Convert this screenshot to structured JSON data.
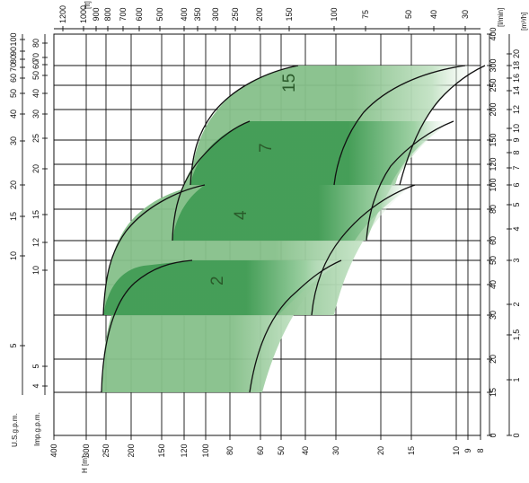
{
  "chart_data": {
    "type": "area",
    "colors": {
      "zone_light": "#86c08a",
      "zone_dark": "#3e9a52",
      "curve": "#111111",
      "grid": "#111111"
    },
    "pump_ranges": [
      {
        "label": "2",
        "name": "zone-2"
      },
      {
        "label": "4",
        "name": "zone-4"
      },
      {
        "label": "7",
        "name": "zone-7"
      },
      {
        "label": "15",
        "name": "zone-15"
      }
    ],
    "axes": {
      "head_m": {
        "unit": "H [m]",
        "ticks": [
          "400",
          "300",
          "250",
          "200",
          "150",
          "120",
          "100",
          "80",
          "60",
          "50",
          "40",
          "30",
          "20",
          "15",
          "10",
          "9",
          "8"
        ]
      },
      "head_ft": {
        "unit": "[ft]",
        "ticks": [
          "1200",
          "1000",
          "900",
          "800",
          "700",
          "600",
          "500",
          "400",
          "350",
          "300",
          "250",
          "200",
          "150",
          "100",
          "75",
          "50",
          "40",
          "30"
        ]
      },
      "flow_lmin": {
        "unit": "[l/min]",
        "ticks": [
          "400",
          "300",
          "250",
          "200",
          "150",
          "120",
          "100",
          "80",
          "60",
          "50",
          "40",
          "30",
          "20",
          "15",
          "0"
        ]
      },
      "flow_m3h": {
        "unit": "[m³/h]",
        "ticks": [
          "20",
          "18",
          "16",
          "14",
          "12",
          "10",
          "9",
          "8",
          "7",
          "6",
          "5",
          "4",
          "3",
          "2",
          "1,5",
          "1",
          "0"
        ]
      },
      "flow_usgpm": {
        "unit": "U.S.g.p.m.",
        "ticks": [
          "100",
          "90",
          "80",
          "70",
          "60",
          "50",
          "40",
          "30",
          "20",
          "15",
          "10",
          "5"
        ]
      },
      "flow_impgpm": {
        "unit": "Imp.g.p.m.",
        "ticks": [
          "80",
          "70",
          "60",
          "50",
          "40",
          "30",
          "25",
          "20",
          "15",
          "12",
          "10",
          "5",
          "4"
        ]
      }
    }
  }
}
